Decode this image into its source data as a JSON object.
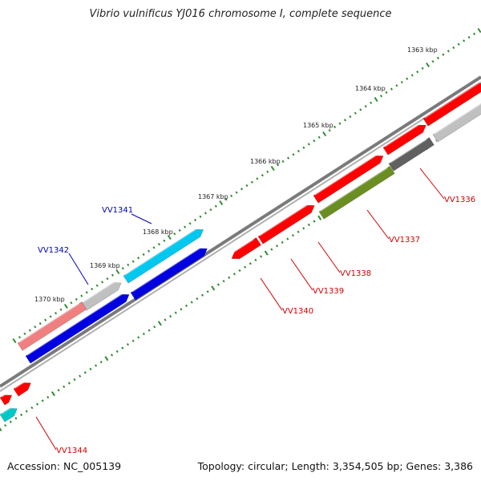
{
  "title": "Vibrio vulnificus YJ016 chromosome I, complete sequence",
  "footer": {
    "accession": "Accession: NC_005139",
    "summary": "Topology: circular; Length: 3,354,505 bp; Genes: 3,386"
  },
  "colors": {
    "backbone": "#808080",
    "tick": "#2e8b2e",
    "label_red": "#d00000",
    "label_blue": "#0000c0"
  },
  "ruler_labels": [
    "1363 kbp",
    "1364 kbp",
    "1365 kbp",
    "1366 kbp",
    "1367 kbp",
    "1368 kbp",
    "1369 kbp",
    "1370 kbp"
  ],
  "gene_labels": [
    {
      "text": "VV1336",
      "color": "#d00000"
    },
    {
      "text": "VV1337",
      "color": "#d00000"
    },
    {
      "text": "VV1338",
      "color": "#d00000"
    },
    {
      "text": "VV1339",
      "color": "#d00000"
    },
    {
      "text": "VV1340",
      "color": "#d00000"
    },
    {
      "text": "VV1341",
      "color": "#0000c0"
    },
    {
      "text": "VV1342",
      "color": "#0000c0"
    },
    {
      "text": "VV1344",
      "color": "#d00000"
    }
  ],
  "features": [
    {
      "name": "red-gene",
      "color": "#ff0000"
    },
    {
      "name": "grey-gene",
      "color": "#c0c0c0"
    },
    {
      "name": "dark-grey-gene",
      "color": "#606060"
    },
    {
      "name": "olive-gene",
      "color": "#6b8e23"
    },
    {
      "name": "cyan-gene",
      "color": "#00c8f0"
    },
    {
      "name": "blue-gene",
      "color": "#0000e0"
    },
    {
      "name": "pink-gene",
      "color": "#f08080"
    },
    {
      "name": "teal-gene",
      "color": "#00c8c8"
    }
  ]
}
